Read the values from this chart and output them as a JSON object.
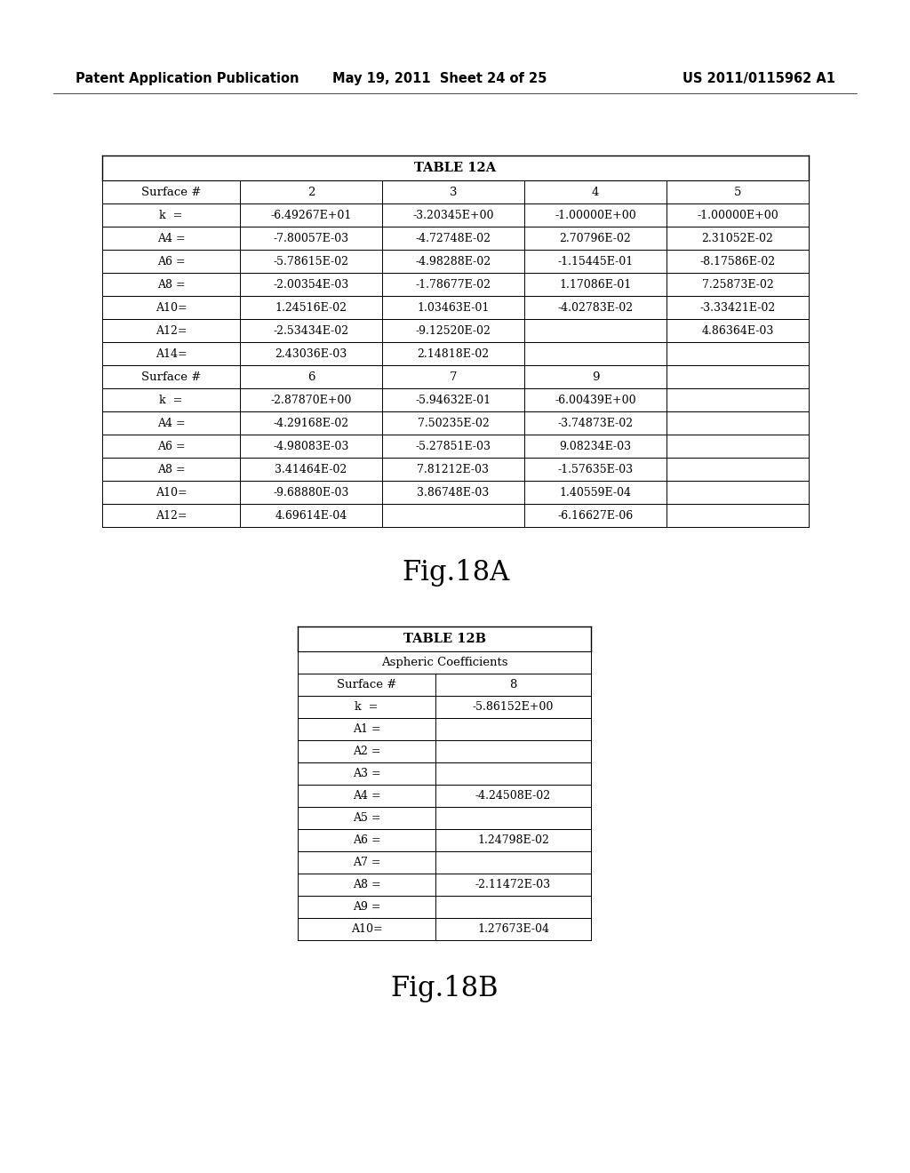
{
  "header_text_left": "Patent Application Publication",
  "header_text_mid": "May 19, 2011  Sheet 24 of 25",
  "header_text_right": "US 2011/0115962 A1",
  "table12a_title": "TABLE 12A",
  "table12a_row1_headers": [
    "Surface #",
    "2",
    "3",
    "4",
    "5"
  ],
  "table12a_data_part1": [
    [
      "k  =",
      "-6.49267E+01",
      "-3.20345E+00",
      "-1.00000E+00",
      "-1.00000E+00"
    ],
    [
      "A4 =",
      "-7.80057E-03",
      "-4.72748E-02",
      "2.70796E-02",
      "2.31052E-02"
    ],
    [
      "A6 =",
      "-5.78615E-02",
      "-4.98288E-02",
      "-1.15445E-01",
      "-8.17586E-02"
    ],
    [
      "A8 =",
      "-2.00354E-03",
      "-1.78677E-02",
      "1.17086E-01",
      "7.25873E-02"
    ],
    [
      "A10=",
      "1.24516E-02",
      "1.03463E-01",
      "-4.02783E-02",
      "-3.33421E-02"
    ],
    [
      "A12=",
      "-2.53434E-02",
      "-9.12520E-02",
      "",
      "4.86364E-03"
    ],
    [
      "A14=",
      "2.43036E-03",
      "2.14818E-02",
      "",
      ""
    ]
  ],
  "table12a_row2_headers": [
    "Surface #",
    "6",
    "7",
    "9",
    ""
  ],
  "table12a_data_part2": [
    [
      "k  =",
      "-2.87870E+00",
      "-5.94632E-01",
      "-6.00439E+00",
      ""
    ],
    [
      "A4 =",
      "-4.29168E-02",
      "7.50235E-02",
      "-3.74873E-02",
      ""
    ],
    [
      "A6 =",
      "-4.98083E-03",
      "-5.27851E-03",
      "9.08234E-03",
      ""
    ],
    [
      "A8 =",
      "3.41464E-02",
      "7.81212E-03",
      "-1.57635E-03",
      ""
    ],
    [
      "A10=",
      "-9.68880E-03",
      "3.86748E-03",
      "1.40559E-04",
      ""
    ],
    [
      "A12=",
      "4.69614E-04",
      "",
      "-6.16627E-06",
      ""
    ]
  ],
  "fig18a_label": "Fig.18A",
  "table12b_title": "TABLE 12B",
  "table12b_subtitle": "Aspheric Coefficients",
  "table12b_headers": [
    "Surface #",
    "8"
  ],
  "table12b_data": [
    [
      "k  =",
      "-5.86152E+00"
    ],
    [
      "A1 =",
      ""
    ],
    [
      "A2 =",
      ""
    ],
    [
      "A3 =",
      ""
    ],
    [
      "A4 =",
      "-4.24508E-02"
    ],
    [
      "A5 =",
      ""
    ],
    [
      "A6 =",
      "1.24798E-02"
    ],
    [
      "A7 =",
      ""
    ],
    [
      "A8 =",
      "-2.11472E-03"
    ],
    [
      "A9 =",
      ""
    ],
    [
      "A10=",
      "1.27673E-04"
    ]
  ],
  "fig18b_label": "Fig.18B",
  "bg_color": "#ffffff",
  "text_color": "#000000"
}
